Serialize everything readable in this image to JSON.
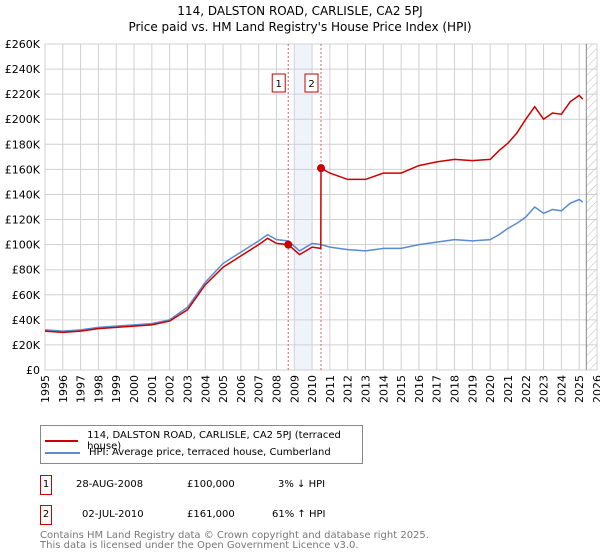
{
  "chart_data": {
    "type": "line",
    "title": "114, DALSTON ROAD, CARLISLE, CA2 5PJ",
    "subtitle": "Price paid vs. HM Land Registry's House Price Index (HPI)",
    "xlim": [
      1995,
      2026
    ],
    "ylim": [
      0,
      260000
    ],
    "x_ticks": [
      "1995",
      "1996",
      "1997",
      "1998",
      "1999",
      "2000",
      "2001",
      "2002",
      "2003",
      "2004",
      "2005",
      "2006",
      "2007",
      "2008",
      "2009",
      "2010",
      "2011",
      "2012",
      "2013",
      "2014",
      "2015",
      "2016",
      "2017",
      "2018",
      "2019",
      "2020",
      "2021",
      "2022",
      "2023",
      "2024",
      "2025",
      "2026"
    ],
    "y_ticks": [
      {
        "v": 0,
        "label": "£0"
      },
      {
        "v": 20000,
        "label": "£20K"
      },
      {
        "v": 40000,
        "label": "£40K"
      },
      {
        "v": 60000,
        "label": "£60K"
      },
      {
        "v": 80000,
        "label": "£80K"
      },
      {
        "v": 100000,
        "label": "£100K"
      },
      {
        "v": 120000,
        "label": "£120K"
      },
      {
        "v": 140000,
        "label": "£140K"
      },
      {
        "v": 160000,
        "label": "£160K"
      },
      {
        "v": 180000,
        "label": "£180K"
      },
      {
        "v": 200000,
        "label": "£200K"
      },
      {
        "v": 220000,
        "label": "£220K"
      },
      {
        "v": 240000,
        "label": "£240K"
      },
      {
        "v": 260000,
        "label": "£260K"
      }
    ],
    "grid": true,
    "shaded_range": [
      2009.0,
      2010.0
    ],
    "forecast_hatch_from": 2025.4,
    "series": [
      {
        "name": "114, DALSTON ROAD, CARLISLE, CA2 5PJ (terraced house)",
        "color": "#cc0000",
        "x": [
          1995,
          1996,
          1997,
          1998,
          1999,
          2000,
          2001,
          2002,
          2003,
          2004,
          2005,
          2006,
          2007,
          2007.5,
          2008,
          2008.66,
          2009.3,
          2010,
          2010.49,
          2010.5,
          2011,
          2012,
          2013,
          2014,
          2015,
          2016,
          2017,
          2018,
          2019,
          2020,
          2020.5,
          2021,
          2021.5,
          2022,
          2022.5,
          2023,
          2023.5,
          2024,
          2024.5,
          2025,
          2025.2
        ],
        "y": [
          31000,
          30000,
          31000,
          33000,
          34000,
          35000,
          36000,
          39000,
          48000,
          68000,
          82000,
          91000,
          100000,
          105000,
          101000,
          100000,
          92000,
          98000,
          97000,
          161000,
          157000,
          152000,
          152000,
          157000,
          157000,
          163000,
          166000,
          168000,
          167000,
          168000,
          175000,
          181000,
          189000,
          200000,
          210000,
          200000,
          205000,
          204000,
          214000,
          219000,
          216000
        ]
      },
      {
        "name": "HPI: Average price, terraced house, Cumberland",
        "color": "#5b8bd0",
        "x": [
          1995,
          1996,
          1997,
          1998,
          1999,
          2000,
          2001,
          2002,
          2003,
          2004,
          2005,
          2006,
          2007,
          2007.5,
          2008,
          2008.66,
          2009.3,
          2010,
          2010.5,
          2011,
          2012,
          2013,
          2014,
          2015,
          2016,
          2017,
          2018,
          2019,
          2020,
          2020.5,
          2021,
          2021.5,
          2022,
          2022.5,
          2023,
          2023.5,
          2024,
          2024.5,
          2025,
          2025.2
        ],
        "y": [
          32000,
          31000,
          32000,
          34000,
          35000,
          36000,
          37000,
          40000,
          50000,
          70000,
          85000,
          94000,
          103000,
          108000,
          104000,
          103000,
          95000,
          101000,
          100000,
          98000,
          96000,
          95000,
          97000,
          97000,
          100000,
          102000,
          104000,
          103000,
          104000,
          108000,
          113000,
          117000,
          122000,
          130000,
          125000,
          128000,
          127000,
          133000,
          136000,
          134000
        ]
      }
    ],
    "annotations": [
      {
        "label": "1",
        "x": 2008.66,
        "y": 100000
      },
      {
        "label": "2",
        "x": 2010.5,
        "y": 161000
      }
    ]
  },
  "legend": {
    "items": [
      {
        "label": "114, DALSTON ROAD, CARLISLE, CA2 5PJ (terraced house)",
        "color": "#cc0000"
      },
      {
        "label": "HPI: Average price, terraced house, Cumberland",
        "color": "#5b8bd0"
      }
    ]
  },
  "transactions": [
    {
      "num": "1",
      "date": "28-AUG-2008",
      "price": "£100,000",
      "hpi": "3% ↓ HPI"
    },
    {
      "num": "2",
      "date": "02-JUL-2010",
      "price": "£161,000",
      "hpi": "61% ↑ HPI"
    }
  ],
  "footer": {
    "line1": "Contains HM Land Registry data © Crown copyright and database right 2025.",
    "line2": "This data is licensed under the Open Government Licence v3.0."
  }
}
